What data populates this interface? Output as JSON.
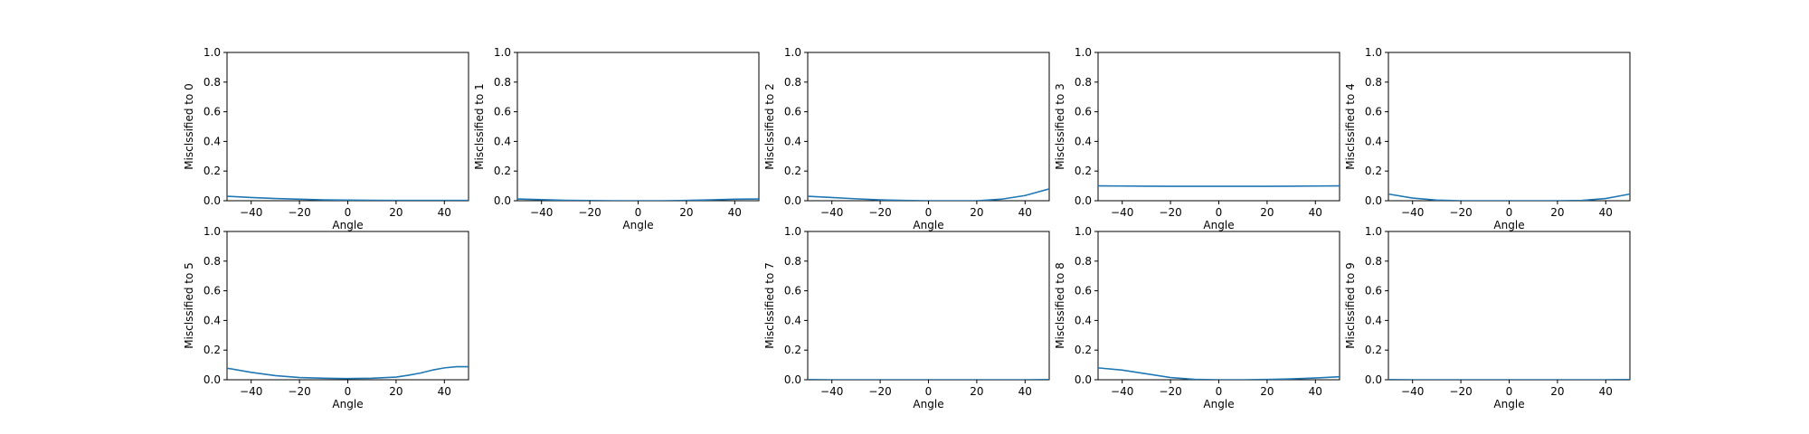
{
  "chart_data": [
    {
      "type": "line",
      "xlabel": "Angle",
      "ylabel": "Misclssified to 0",
      "xlim": [
        -50,
        50
      ],
      "ylim": [
        0,
        1
      ],
      "xticks": [
        "−40",
        "−20",
        "0",
        "20",
        "40"
      ],
      "yticks": [
        "0.0",
        "0.2",
        "0.4",
        "0.6",
        "0.8",
        "1.0"
      ],
      "x": [
        -50,
        -40,
        -30,
        -20,
        -10,
        0,
        10,
        20,
        30,
        40,
        50
      ],
      "series": [
        {
          "values": [
            0.03,
            0.022,
            0.015,
            0.01,
            0.006,
            0.004,
            0.003,
            0.002,
            0.002,
            0.002,
            0.002
          ]
        }
      ]
    },
    {
      "type": "line",
      "xlabel": "Angle",
      "ylabel": "Misclssified to 1",
      "xlim": [
        -50,
        50
      ],
      "ylim": [
        0,
        1
      ],
      "xticks": [
        "−40",
        "−20",
        "0",
        "20",
        "40"
      ],
      "yticks": [
        "0.0",
        "0.2",
        "0.4",
        "0.6",
        "0.8",
        "1.0"
      ],
      "x": [
        -50,
        -40,
        -30,
        -20,
        -10,
        0,
        10,
        20,
        30,
        40,
        50
      ],
      "series": [
        {
          "values": [
            0.012,
            0.007,
            0.003,
            0.001,
            0.0,
            0.0,
            0.0,
            0.002,
            0.006,
            0.01,
            0.012
          ]
        }
      ]
    },
    {
      "type": "line",
      "xlabel": "Angle",
      "ylabel": "Misclssified to 2",
      "xlim": [
        -50,
        50
      ],
      "ylim": [
        0,
        1
      ],
      "xticks": [
        "−40",
        "−20",
        "0",
        "20",
        "40"
      ],
      "yticks": [
        "0.0",
        "0.2",
        "0.4",
        "0.6",
        "0.8",
        "1.0"
      ],
      "x": [
        -50,
        -40,
        -30,
        -20,
        -10,
        0,
        10,
        20,
        30,
        40,
        50
      ],
      "series": [
        {
          "values": [
            0.03,
            0.022,
            0.013,
            0.006,
            0.002,
            0.0,
            0.0,
            0.0,
            0.01,
            0.035,
            0.08
          ]
        }
      ]
    },
    {
      "type": "line",
      "xlabel": "Angle",
      "ylabel": "Misclssified to 3",
      "xlim": [
        -50,
        50
      ],
      "ylim": [
        0,
        1
      ],
      "xticks": [
        "−40",
        "−20",
        "0",
        "20",
        "40"
      ],
      "yticks": [
        "0.0",
        "0.2",
        "0.4",
        "0.6",
        "0.8",
        "1.0"
      ],
      "x": [
        -50,
        -40,
        -30,
        -20,
        -10,
        0,
        10,
        20,
        30,
        40,
        50
      ],
      "series": [
        {
          "values": [
            0.1,
            0.099,
            0.098,
            0.097,
            0.097,
            0.097,
            0.097,
            0.097,
            0.098,
            0.099,
            0.1
          ]
        }
      ]
    },
    {
      "type": "line",
      "xlabel": "Angle",
      "ylabel": "Misclssified to 4",
      "xlim": [
        -50,
        50
      ],
      "ylim": [
        0,
        1
      ],
      "xticks": [
        "−40",
        "−20",
        "0",
        "20",
        "40"
      ],
      "yticks": [
        "0.0",
        "0.2",
        "0.4",
        "0.6",
        "0.8",
        "1.0"
      ],
      "x": [
        -50,
        -40,
        -30,
        -20,
        -10,
        0,
        10,
        20,
        30,
        40,
        50
      ],
      "series": [
        {
          "values": [
            0.045,
            0.018,
            0.004,
            0.0,
            0.0,
            0.0,
            0.0,
            0.0,
            0.002,
            0.015,
            0.045
          ]
        }
      ]
    },
    {
      "type": "line",
      "xlabel": "Angle",
      "ylabel": "Misclssified to 5",
      "xlim": [
        -50,
        50
      ],
      "ylim": [
        0,
        1
      ],
      "xticks": [
        "−40",
        "−20",
        "0",
        "20",
        "40"
      ],
      "yticks": [
        "0.0",
        "0.2",
        "0.4",
        "0.6",
        "0.8",
        "1.0"
      ],
      "x": [
        -50,
        -40,
        -30,
        -20,
        -10,
        0,
        10,
        20,
        25,
        30,
        35,
        40,
        45,
        50
      ],
      "series": [
        {
          "values": [
            0.078,
            0.05,
            0.028,
            0.015,
            0.01,
            0.008,
            0.01,
            0.018,
            0.03,
            0.045,
            0.065,
            0.08,
            0.088,
            0.088
          ]
        }
      ]
    },
    {
      "type": "line",
      "xlabel": "Angle",
      "ylabel": "Misclssified to 7",
      "xlim": [
        -50,
        50
      ],
      "ylim": [
        0,
        1
      ],
      "xticks": [
        "−40",
        "−20",
        "0",
        "20",
        "40"
      ],
      "yticks": [
        "0.0",
        "0.2",
        "0.4",
        "0.6",
        "0.8",
        "1.0"
      ],
      "x": [
        -50,
        -40,
        -30,
        -20,
        -10,
        0,
        10,
        20,
        30,
        40,
        50
      ],
      "series": [
        {
          "values": [
            0.001,
            0.0,
            0.0,
            0.0,
            0.0,
            0.0,
            0.0,
            0.0,
            0.0,
            0.0,
            0.001
          ]
        }
      ]
    },
    {
      "type": "line",
      "xlabel": "Angle",
      "ylabel": "Misclssified to 8",
      "xlim": [
        -50,
        50
      ],
      "ylim": [
        0,
        1
      ],
      "xticks": [
        "−40",
        "−20",
        "0",
        "20",
        "40"
      ],
      "yticks": [
        "0.0",
        "0.2",
        "0.4",
        "0.6",
        "0.8",
        "1.0"
      ],
      "x": [
        -50,
        -40,
        -30,
        -20,
        -10,
        0,
        10,
        20,
        30,
        40,
        50
      ],
      "series": [
        {
          "values": [
            0.08,
            0.065,
            0.04,
            0.015,
            0.003,
            0.0,
            0.0,
            0.002,
            0.006,
            0.012,
            0.02
          ]
        }
      ]
    },
    {
      "type": "line",
      "xlabel": "Angle",
      "ylabel": "Misclssified to 9",
      "xlim": [
        -50,
        50
      ],
      "ylim": [
        0,
        1
      ],
      "xticks": [
        "−40",
        "−20",
        "0",
        "20",
        "40"
      ],
      "yticks": [
        "0.0",
        "0.2",
        "0.4",
        "0.6",
        "0.8",
        "1.0"
      ],
      "x": [
        -50,
        -40,
        -30,
        -20,
        -10,
        0,
        10,
        20,
        30,
        40,
        50
      ],
      "series": [
        {
          "values": [
            0.001,
            0.0,
            0.0,
            0.0,
            0.0,
            0.0,
            0.0,
            0.0,
            0.0,
            0.0,
            0.001
          ]
        }
      ]
    }
  ],
  "colors": {
    "line": "#1f77b4",
    "frame": "#000000",
    "background": "#ffffff"
  }
}
